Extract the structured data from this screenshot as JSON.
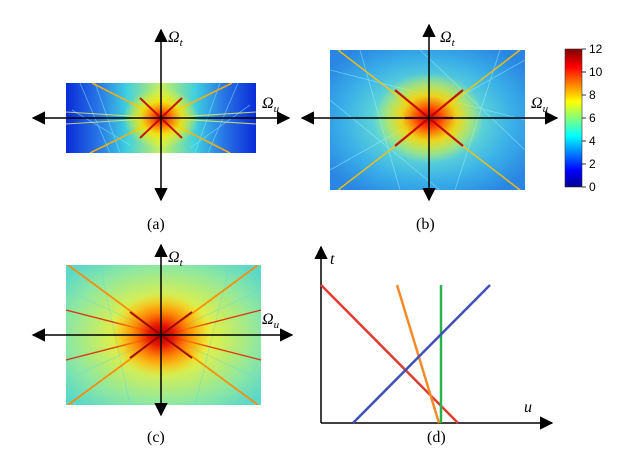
{
  "panels": [
    {
      "id": "a",
      "caption": "(a)",
      "vertical_axis": {
        "symbol": "Ω",
        "subscript": "t"
      },
      "horizontal_axis": {
        "symbol": "Ω",
        "subscript": "u"
      },
      "style": "narrow-band"
    },
    {
      "id": "b",
      "caption": "(b)",
      "vertical_axis": {
        "symbol": "Ω",
        "subscript": "t"
      },
      "horizontal_axis": {
        "symbol": "Ω",
        "subscript": "u"
      },
      "style": "wide"
    },
    {
      "id": "c",
      "caption": "(c)",
      "vertical_axis": {
        "symbol": "Ω",
        "subscript": "t"
      },
      "horizontal_axis": {
        "symbol": "Ω",
        "subscript": "u"
      },
      "style": "bright"
    }
  ],
  "colorbar": {
    "ticks": [
      "12",
      "10",
      "8",
      "6",
      "4",
      "2",
      "0"
    ],
    "colormap": [
      "#00008f",
      "#0000ff",
      "#00ffff",
      "#ffff00",
      "#ff0000",
      "#800000"
    ]
  },
  "line_panel": {
    "caption": "(d)",
    "t_label": "t",
    "u_label": "u",
    "lines": [
      {
        "name": "red-line",
        "color": "#e03c31"
      },
      {
        "name": "orange-line",
        "color": "#f28c28"
      },
      {
        "name": "green-line",
        "color": "#2bb34b"
      },
      {
        "name": "blue-line",
        "color": "#3f51b5"
      }
    ]
  }
}
